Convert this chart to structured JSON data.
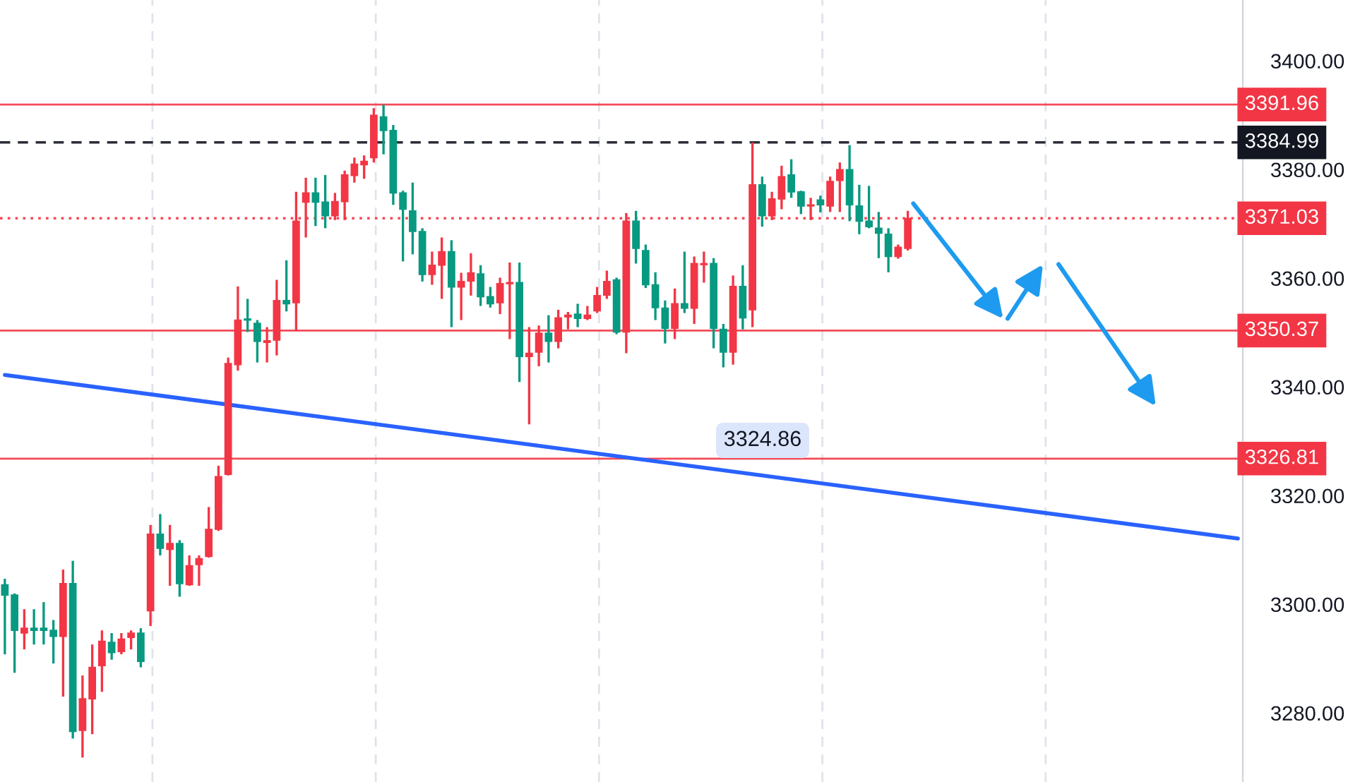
{
  "chart_data": {
    "type": "candlestick",
    "categories": [
      null,
      null,
      null,
      null,
      null,
      null,
      null,
      null,
      null,
      null,
      null,
      null,
      null,
      null,
      null,
      null,
      null,
      null,
      null,
      null,
      null,
      null,
      null,
      null,
      null,
      null,
      null,
      null,
      null,
      null,
      null,
      null,
      null,
      null,
      null,
      null,
      null,
      null,
      null,
      null,
      null,
      null,
      null,
      null,
      null,
      null,
      null,
      null,
      null,
      null,
      null,
      null,
      null,
      null,
      null,
      null,
      null,
      null,
      null,
      null,
      null,
      null,
      null,
      null,
      null,
      null,
      null,
      null,
      null,
      null,
      null,
      null,
      null,
      null,
      null,
      null,
      null,
      null,
      null,
      null,
      null,
      null,
      null,
      null,
      null,
      null,
      null,
      null,
      null,
      null,
      null,
      null,
      null,
      null,
      null,
      null,
      null,
      null,
      null,
      null,
      null,
      null,
      null,
      null,
      null,
      null,
      null,
      null,
      null,
      null,
      null,
      null,
      null,
      null,
      null,
      null,
      null,
      null,
      null,
      null,
      null,
      null,
      null,
      null,
      null,
      null,
      null,
      null
    ],
    "ohlc": [
      [
        3303.6,
        3304.7,
        3290.8,
        3301.7
      ],
      [
        3301.7,
        3302.0,
        3287.4,
        3295.2
      ],
      [
        3294.7,
        3299.1,
        3291.7,
        3295.6
      ],
      [
        3295.6,
        3299.1,
        3292.6,
        3295.2
      ],
      [
        3295.6,
        3300.4,
        3292.6,
        3295.2
      ],
      [
        3295.2,
        3297.1,
        3289.1,
        3294.1
      ],
      [
        3294.1,
        3306.4,
        3283.0,
        3303.8
      ],
      [
        3303.8,
        3308.0,
        3275.3,
        3276.6
      ],
      [
        3276.8,
        3286.9,
        3271.8,
        3282.6
      ],
      [
        3282.6,
        3292.6,
        3276.1,
        3288.4
      ],
      [
        3288.7,
        3295.2,
        3283.9,
        3293.2
      ],
      [
        3293.0,
        3294.7,
        3289.8,
        3291.1
      ],
      [
        3291.3,
        3294.7,
        3290.8,
        3293.6
      ],
      [
        3293.9,
        3295.2,
        3291.7,
        3294.7
      ],
      [
        3294.7,
        3295.6,
        3288.4,
        3289.5
      ],
      [
        3298.8,
        3314.6,
        3296.0,
        3312.9
      ],
      [
        3312.9,
        3316.6,
        3309.0,
        3310.3
      ],
      [
        3310.1,
        3314.6,
        3303.4,
        3311.2
      ],
      [
        3311.2,
        3311.8,
        3301.4,
        3303.8
      ],
      [
        3303.6,
        3309.0,
        3303.4,
        3307.1
      ],
      [
        3307.3,
        3309.0,
        3303.4,
        3308.4
      ],
      [
        3308.8,
        3317.9,
        3308.6,
        3313.8
      ],
      [
        3313.8,
        3325.5,
        3313.5,
        3323.5
      ],
      [
        3323.9,
        3345.4,
        3323.7,
        3344.3
      ],
      [
        3344.1,
        3358.5,
        3343.0,
        3352.3
      ],
      [
        3352.5,
        3356.2,
        3350.1,
        3352.3
      ],
      [
        3351.7,
        3352.3,
        3344.5,
        3348.4
      ],
      [
        3348.2,
        3351.0,
        3344.5,
        3348.5
      ],
      [
        3348.6,
        3359.7,
        3345.8,
        3355.9
      ],
      [
        3355.9,
        3363.3,
        3353.9,
        3355.3
      ],
      [
        3355.5,
        3375.9,
        3350.3,
        3370.5
      ],
      [
        3374.0,
        3378.5,
        3367.5,
        3375.7
      ],
      [
        3375.7,
        3378.5,
        3369.6,
        3374.0
      ],
      [
        3374.0,
        3379.0,
        3369.2,
        3371.5
      ],
      [
        3371.5,
        3375.7,
        3370.7,
        3374.1
      ],
      [
        3374.1,
        3379.8,
        3370.7,
        3379.0
      ],
      [
        3378.9,
        3382.2,
        3377.6,
        3381.0
      ],
      [
        3380.9,
        3382.6,
        3378.3,
        3381.5
      ],
      [
        3382.2,
        3391.3,
        3381.3,
        3390.0
      ],
      [
        3389.7,
        3391.9,
        3382.8,
        3387.2
      ],
      [
        3387.2,
        3388.2,
        3373.5,
        3375.7
      ],
      [
        3375.7,
        3376.1,
        3363.1,
        3372.7
      ],
      [
        3372.4,
        3377.6,
        3364.4,
        3368.6
      ],
      [
        3368.6,
        3369.2,
        3359.4,
        3360.7
      ],
      [
        3360.7,
        3364.9,
        3358.8,
        3362.4
      ],
      [
        3362.4,
        3367.5,
        3356.2,
        3364.9
      ],
      [
        3364.9,
        3367.0,
        3351.0,
        3358.4
      ],
      [
        3358.4,
        3361.0,
        3352.3,
        3359.4
      ],
      [
        3359.5,
        3364.6,
        3356.8,
        3361.0
      ],
      [
        3360.8,
        3362.4,
        3354.9,
        3356.6
      ],
      [
        3356.6,
        3358.4,
        3354.6,
        3355.3
      ],
      [
        3355.5,
        3360.1,
        3353.4,
        3359.0
      ],
      [
        3359.0,
        3362.9,
        3348.8,
        3359.2
      ],
      [
        3359.2,
        3362.9,
        3340.9,
        3345.6
      ],
      [
        3345.6,
        3351.0,
        3333.1,
        3346.2
      ],
      [
        3346.4,
        3351.3,
        3343.8,
        3349.9
      ],
      [
        3349.9,
        3353.2,
        3344.5,
        3348.4
      ],
      [
        3348.4,
        3354.2,
        3347.1,
        3352.7
      ],
      [
        3352.9,
        3353.8,
        3350.6,
        3353.2
      ],
      [
        3353.4,
        3355.3,
        3351.0,
        3352.6
      ],
      [
        3352.6,
        3354.9,
        3352.3,
        3353.2
      ],
      [
        3354.0,
        3358.4,
        3353.6,
        3356.8
      ],
      [
        3356.9,
        3361.4,
        3356.2,
        3359.4
      ],
      [
        3359.7,
        3360.1,
        3349.7,
        3350.1
      ],
      [
        3350.1,
        3372.0,
        3346.2,
        3370.5
      ],
      [
        3370.5,
        3372.4,
        3362.7,
        3365.5
      ],
      [
        3365.1,
        3366.2,
        3358.2,
        3358.8
      ],
      [
        3358.8,
        3361.1,
        3352.3,
        3354.6
      ],
      [
        3354.5,
        3355.9,
        3348.0,
        3350.8
      ],
      [
        3350.8,
        3358.1,
        3348.8,
        3355.3
      ],
      [
        3355.3,
        3364.9,
        3353.6,
        3354.5
      ],
      [
        3354.5,
        3364.0,
        3351.6,
        3362.7
      ],
      [
        3362.5,
        3364.9,
        3359.2,
        3362.7
      ],
      [
        3362.7,
        3363.7,
        3347.1,
        3350.8
      ],
      [
        3350.6,
        3351.6,
        3343.6,
        3346.4
      ],
      [
        3346.4,
        3360.5,
        3344.1,
        3358.5
      ],
      [
        3358.5,
        3362.4,
        3350.6,
        3352.7
      ],
      [
        3354.2,
        3385.0,
        3351.0,
        3377.2
      ],
      [
        3377.2,
        3378.7,
        3369.5,
        3371.5
      ],
      [
        3371.5,
        3375.9,
        3370.7,
        3374.6
      ],
      [
        3374.6,
        3380.7,
        3372.7,
        3378.7
      ],
      [
        3379.0,
        3381.9,
        3374.8,
        3375.9
      ],
      [
        3375.9,
        3376.1,
        3371.8,
        3373.3
      ],
      [
        3373.3,
        3374.8,
        3370.7,
        3373.5
      ],
      [
        3374.4,
        3375.2,
        3372.1,
        3373.5
      ],
      [
        3373.3,
        3378.7,
        3372.2,
        3377.8
      ],
      [
        3378.0,
        3381.3,
        3372.2,
        3380.0
      ],
      [
        3380.0,
        3384.5,
        3370.5,
        3373.5
      ],
      [
        3373.3,
        3377.2,
        3368.1,
        3370.5
      ],
      [
        3370.5,
        3377.0,
        3369.2,
        3369.5
      ],
      [
        3369.2,
        3372.2,
        3363.7,
        3368.3
      ],
      [
        3368.1,
        3369.2,
        3361.1,
        3364.0
      ],
      [
        3364.0,
        3366.2,
        3363.6,
        3365.7
      ],
      [
        3365.5,
        3372.4,
        3365.1,
        3371.0
      ],
      null,
      null,
      null,
      null,
      null,
      null,
      null,
      null,
      null,
      null,
      null,
      null,
      null,
      null,
      null,
      null,
      null,
      null,
      null,
      null,
      null,
      null,
      null,
      null,
      null,
      null,
      null,
      null,
      null,
      null,
      null,
      null,
      null,
      null
    ],
    "colors": [
      "#089981",
      "#089981",
      "#f23645",
      "#089981",
      "#089981",
      "#089981",
      "#f23645",
      "#089981",
      "#f23645",
      "#f23645",
      "#f23645",
      "#089981",
      "#f23645",
      "#f23645",
      "#089981",
      "#f23645",
      "#089981",
      "#f23645",
      "#089981",
      "#f23645",
      "#f23645",
      "#f23645",
      "#f23645",
      "#f23645",
      "#f23645",
      "#089981",
      "#089981",
      "#f23645",
      "#f23645",
      "#089981",
      "#f23645",
      "#f23645",
      "#089981",
      "#089981",
      "#f23645",
      "#f23645",
      "#f23645",
      "#f23645",
      "#f23645",
      "#089981",
      "#089981",
      "#089981",
      "#089981",
      "#089981",
      "#f23645",
      "#f23645",
      "#089981",
      "#f23645",
      "#f23645",
      "#089981",
      "#089981",
      "#f23645",
      "#f23645",
      "#089981",
      "#f23645",
      "#f23645",
      "#089981",
      "#f23645",
      "#f23645",
      "#089981",
      "#f23645",
      "#f23645",
      "#f23645",
      "#089981",
      "#f23645",
      "#089981",
      "#089981",
      "#089981",
      "#089981",
      "#f23645",
      "#089981",
      "#f23645",
      "#f23645",
      "#089981",
      "#089981",
      "#f23645",
      "#089981",
      "#f23645",
      "#089981",
      "#f23645",
      "#f23645",
      "#089981",
      "#089981",
      "#f23645",
      "#089981",
      "#f23645",
      "#f23645",
      "#089981",
      "#089981",
      "#089981",
      "#089981",
      "#089981",
      "#f23645",
      "#f23645",
      null,
      null,
      null,
      null,
      null,
      null,
      null,
      null,
      null,
      null,
      null,
      null,
      null,
      null,
      null,
      null,
      null,
      null,
      null,
      null,
      null,
      null,
      null,
      null,
      null,
      null,
      null,
      null,
      null,
      null,
      null,
      null,
      null,
      null
    ],
    "series": [
      {
        "type": "line",
        "color": "#2962ff",
        "values": [
          3342.2,
          null,
          null,
          null,
          null,
          null,
          null,
          null,
          null,
          null,
          null,
          null,
          null,
          null,
          null,
          null,
          null,
          null,
          null,
          null,
          null,
          null,
          null,
          null,
          null,
          null,
          null,
          null,
          null,
          null,
          null,
          null,
          null,
          null,
          null,
          null,
          null,
          null,
          null,
          null,
          null,
          null,
          null,
          null,
          null,
          null,
          null,
          null,
          null,
          null,
          null,
          null,
          null,
          null,
          null,
          null,
          null,
          null,
          null,
          null,
          null,
          null,
          null,
          null,
          null,
          null,
          null,
          null,
          null,
          null,
          null,
          null,
          null,
          null,
          null,
          null,
          null,
          null,
          null,
          null,
          null,
          null,
          null,
          null,
          null,
          null,
          null,
          null,
          null,
          null,
          null,
          null,
          null,
          null,
          null,
          null,
          null,
          null,
          null,
          null,
          null,
          null,
          null,
          null,
          null,
          null,
          null,
          null,
          null,
          null,
          null,
          null,
          null,
          null,
          null,
          null,
          null,
          null,
          null,
          null,
          null,
          null,
          null,
          null,
          null,
          null,
          null,
          3312.1
        ]
      }
    ],
    "ylim": [
      3267.3,
      3411.2
    ],
    "yticks": [
      {
        "value": 3280,
        "label": "3280.00"
      },
      {
        "value": 3300,
        "label": "3300.00"
      },
      {
        "value": 3320,
        "label": "3320.00"
      },
      {
        "value": 3340,
        "label": "3340.00"
      },
      {
        "value": 3360,
        "label": "3360.00"
      },
      {
        "value": 3380,
        "label": "3380.00"
      },
      {
        "value": 3400,
        "label": "3400.00"
      }
    ],
    "tick_labels": "y",
    "ref_lines": [
      {
        "axis": "y",
        "value": 3391.96,
        "label": "3391.96",
        "color": "#f23645",
        "line_style": "solid"
      },
      {
        "axis": "y",
        "value": 3384.99,
        "label": "3384.99",
        "color": "#131722",
        "line_style": "dashed"
      },
      {
        "axis": "y",
        "value": 3371.03,
        "label": "3371.03",
        "color": "#f23645",
        "line_style": "dotted"
      },
      {
        "axis": "y",
        "value": 3350.37,
        "label": "3350.37",
        "color": "#f23645",
        "line_style": "solid"
      },
      {
        "axis": "y",
        "value": 3326.81,
        "label": "3326.81",
        "color": "#f23645",
        "line_style": "solid"
      }
    ],
    "annotations": [
      "3324.86"
    ]
  }
}
